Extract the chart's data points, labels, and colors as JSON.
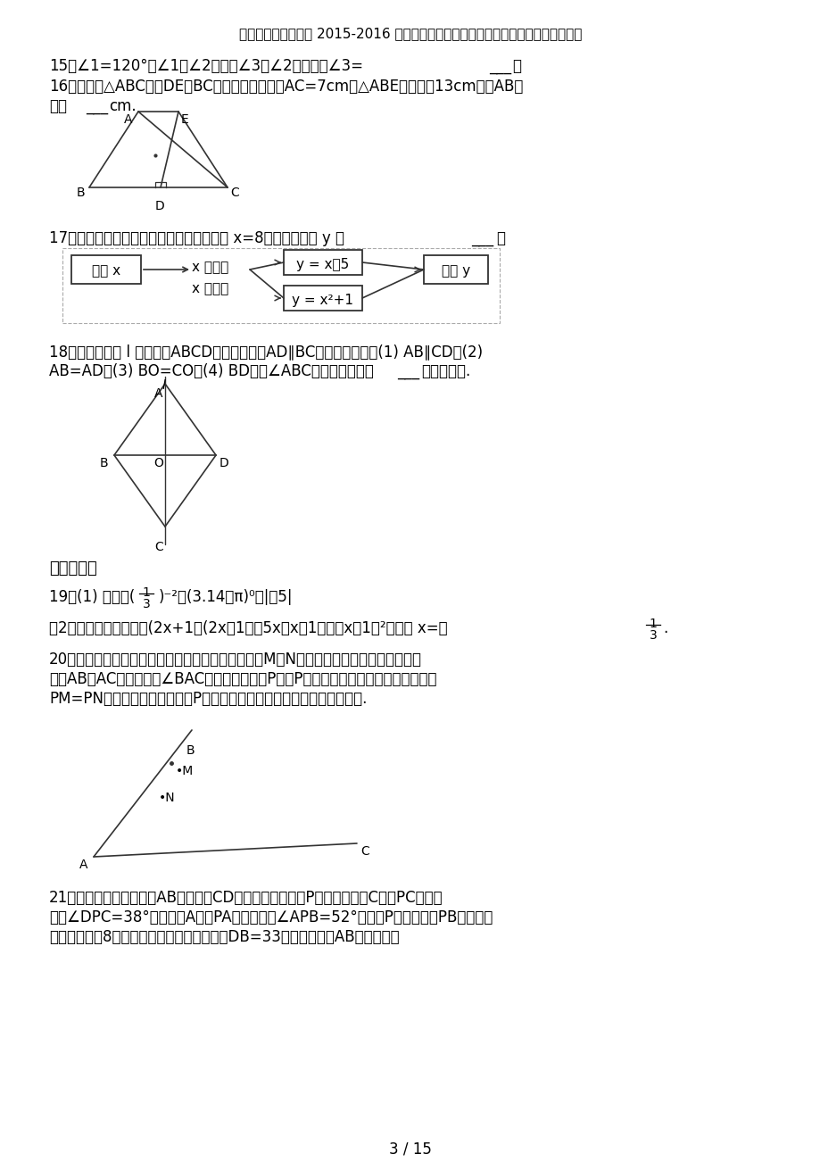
{
  "title": "江西省萍乡市芦溪县 2015-2016 学年七年级数学下学期期末试卷（含解析）北师大版",
  "bg_color": "#ffffff",
  "text_color": "#000000",
  "page_label": "3 / 15",
  "q15": "15．∠1=120°，∠1与∠2互补，∠3与∠2互余，则∠3=___．",
  "q16a": "16．如图，△ABC中，DE是BC的垂直平分线，若AC=7cm，△ABE的周长为13cm，则AB的",
  "q16b": "长为___cm.",
  "q17": "17．根据如图所示的计算程序，若输入的值 x=8，则输出的值 y 为___．",
  "q18a": "18．如图，直线 l 是四边形ABCD的对称轴，若AD∥BC，则下列结论：(1) AB∥CD；(2)",
  "q18b": "AB=AD；(3) BO=CO，(4) BD平分∠ABC．其中正确的有___ （填序号）.",
  "q19_header": "三、解答题",
  "q19a": "19．(1) 计算：(",
  "q19a2": ")  ⁻²+ (3.14 - π ) ⁰ - | -5|",
  "q19b": "（2）先化简，再求值：(2x+1）(2x - 1）- 5x（x - 1）+（x - 1）²，其中 x= -",
  "q20a": "20．如图，南开中学高二年级的学生分别在五云山寨M，N两处参加社会时间活动．先要在",
  "q20b": "道路AB，AC形成的锐角∠BAC内设一个休息区P，使P到两条道路的距离相等，并且使得",
  "q20c": "PM=PN，请用直尺和圆规作出P点的位置（不写作法，值保留作图痕迹）.",
  "q21a": "21．为了测量一幢高楼高AB，在旗杆CD与楼之间选定一点P，测得旗杆顶C视线PC与地面",
  "q21b": "夹角∠DPC=38°，测楼顶A视线PA与地面夹角∠APB=52°，量得P到楼底距离PB与旗杆高",
  "q21c": "度相等，等于8米，量得旗杆与楼之间距离为DB=33米，计算楼高AB是多少米？"
}
